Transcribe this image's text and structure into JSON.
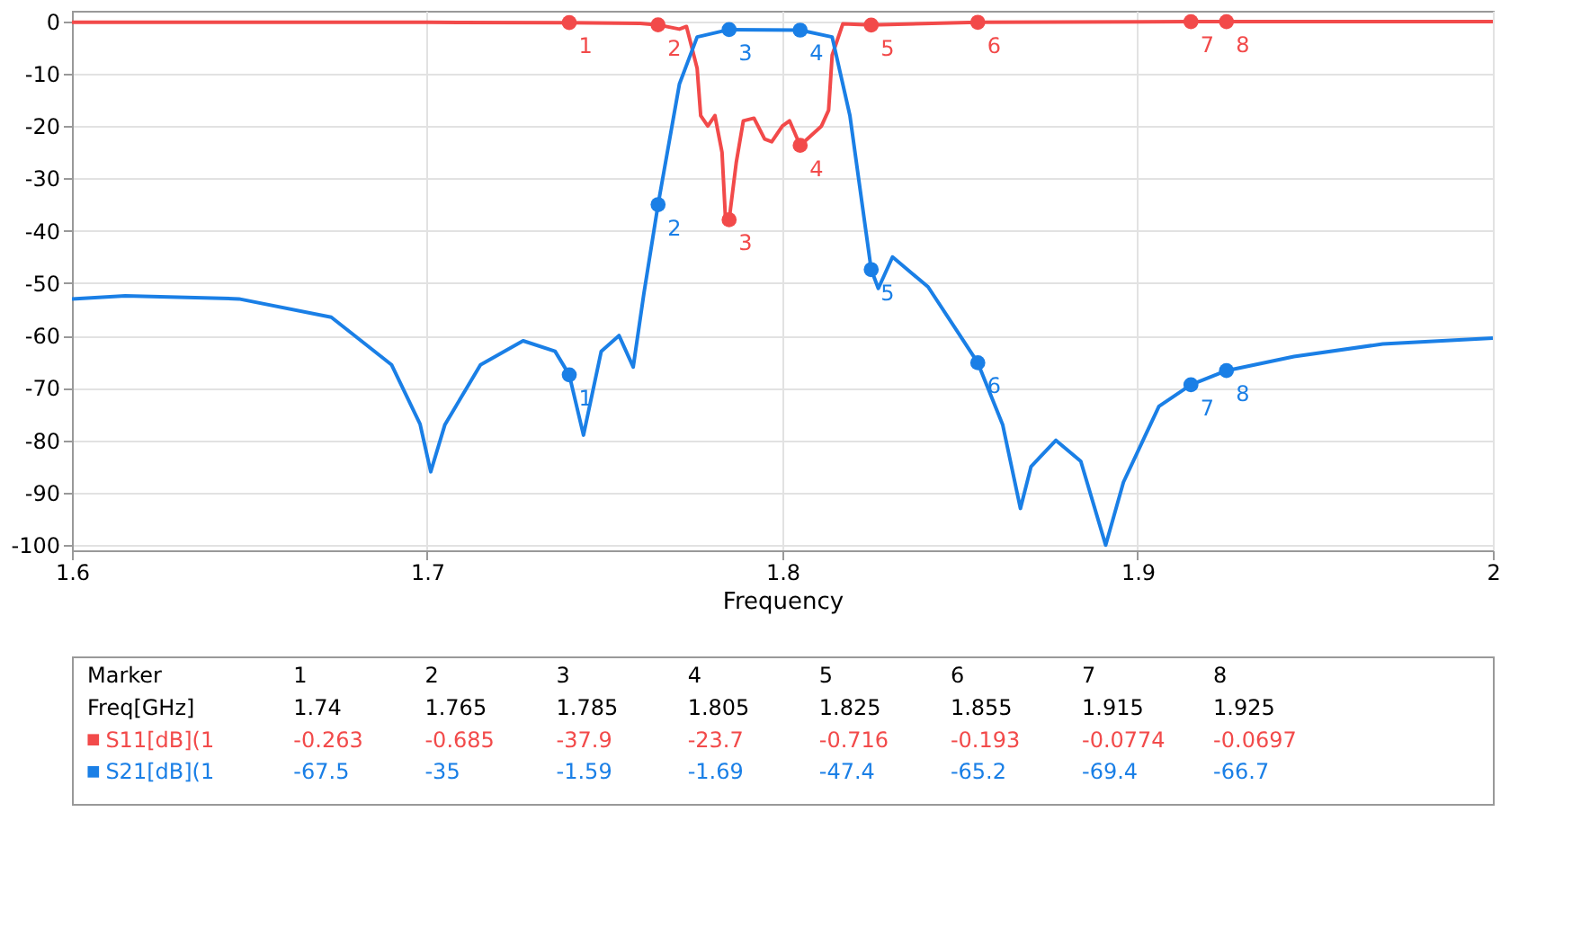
{
  "chart_data": {
    "type": "line",
    "xlabel": "Frequency",
    "xlim": [
      1.6,
      2.0
    ],
    "xticks": [
      1.6,
      1.7,
      1.8,
      1.9,
      2
    ],
    "ylim": [
      -101,
      2
    ],
    "yticks": [
      0,
      -10,
      -20,
      -30,
      -40,
      -50,
      -60,
      -70,
      -80,
      -90,
      -100
    ],
    "grid": true,
    "legend": "bottom",
    "annotations": [
      "Marker",
      "Freq[GHz]",
      "1.74",
      "1.765",
      "1.785",
      "1.805",
      "1.825",
      "1.855",
      "1.915",
      "1.925",
      "-0.263",
      "-0.685",
      "-37.9",
      "-23.7",
      "-0.716",
      "-0.193",
      "-0.0774",
      "-0.0697",
      "-67.5",
      "-35",
      "-1.59",
      "-1.69",
      "-47.4",
      "-65.2",
      "-69.4",
      "-66.7",
      {
        "text": "1",
        "x": 1.74,
        "y": -0.263
      },
      {
        "text": "2",
        "x": 1.765,
        "y": -0.685
      },
      {
        "text": "3",
        "x": 1.785,
        "y": -37.9
      },
      {
        "text": "4",
        "x": 1.805,
        "y": -23.7
      },
      {
        "text": "5",
        "x": 1.825,
        "y": -0.716
      },
      {
        "text": "6",
        "x": 1.855,
        "y": -0.193
      },
      {
        "text": "7",
        "x": 1.915,
        "y": -0.0774
      },
      {
        "text": "8",
        "x": 1.925,
        "y": -0.0697
      },
      {
        "text": "1",
        "x": 1.74,
        "y": -67.5
      },
      {
        "text": "2",
        "x": 1.765,
        "y": -35
      },
      {
        "text": "3",
        "x": 1.785,
        "y": -1.59
      },
      {
        "text": "4",
        "x": 1.805,
        "y": -1.69
      },
      {
        "text": "5",
        "x": 1.825,
        "y": -47.4
      },
      {
        "text": "6",
        "x": 1.855,
        "y": -65.2
      },
      {
        "text": "7",
        "x": 1.915,
        "y": -69.4
      },
      {
        "text": "8",
        "x": 1.925,
        "y": -66.7
      }
    ],
    "series": [
      {
        "color": "#f24a4a",
        "x": [
          1.6,
          1.7,
          1.74,
          1.76,
          1.765,
          1.771,
          1.773,
          1.776,
          1.777,
          1.779,
          1.781,
          1.783,
          1.784,
          1.785,
          1.787,
          1.789,
          1.792,
          1.795,
          1.797,
          1.8,
          1.802,
          1.805,
          1.811,
          1.813,
          1.814,
          1.817,
          1.825,
          1.855,
          1.915,
          1.925,
          2.0
        ],
        "values": [
          -0.2,
          -0.2,
          -0.263,
          -0.4,
          -0.685,
          -1.5,
          -1,
          -9,
          -18,
          -20,
          -18,
          -25,
          -38,
          -37.9,
          -27,
          -19,
          -18.5,
          -22.5,
          -23,
          -20,
          -19,
          -23.7,
          -20,
          -17,
          -6.5,
          -0.5,
          -0.716,
          -0.193,
          -0.0774,
          -0.0697,
          -0.05
        ]
      },
      {
        "color": "#1a7fe6",
        "x": [
          1.6,
          1.615,
          1.647,
          1.673,
          1.69,
          1.698,
          1.701,
          1.705,
          1.715,
          1.727,
          1.736,
          1.74,
          1.744,
          1.749,
          1.754,
          1.758,
          1.761,
          1.765,
          1.771,
          1.776,
          1.785,
          1.805,
          1.814,
          1.819,
          1.825,
          1.827,
          1.831,
          1.841,
          1.85,
          1.855,
          1.862,
          1.867,
          1.87,
          1.877,
          1.884,
          1.891,
          1.896,
          1.906,
          1.915,
          1.925,
          1.944,
          1.969,
          2.0
        ],
        "values": [
          -53,
          -52.4,
          -53,
          -56.5,
          -65.6,
          -76.9,
          -86,
          -77,
          -65.6,
          -61,
          -63,
          -67.5,
          -79,
          -63,
          -60,
          -66,
          -52,
          -35,
          -12,
          -3,
          -1.59,
          -1.69,
          -3,
          -18,
          -47.4,
          -51,
          -45,
          -50.7,
          -60,
          -65.2,
          -77,
          -93,
          -85,
          -80,
          -84,
          -100,
          -88,
          -73.5,
          -69.4,
          -66.7,
          -64,
          -61.6,
          -60.5
        ]
      },
      {
        "type": "scatter",
        "name": "S11[dB](1",
        "color": "#f24a4a",
        "marker": "circle",
        "x": [
          1.74,
          1.765,
          1.785,
          1.805,
          1.825,
          1.855,
          1.915,
          1.925
        ],
        "values": [
          -0.263,
          -0.685,
          -37.9,
          -23.7,
          -0.716,
          -0.193,
          -0.0774,
          -0.0697
        ]
      },
      {
        "type": "scatter",
        "name": "S21[dB](1",
        "color": "#1a7fe6",
        "marker": "circle",
        "x": [
          1.74,
          1.765,
          1.785,
          1.805,
          1.825,
          1.855,
          1.915,
          1.925
        ],
        "values": [
          -67.5,
          -35,
          -1.59,
          -1.69,
          -47.4,
          -65.2,
          -69.4,
          -66.7
        ]
      }
    ]
  }
}
